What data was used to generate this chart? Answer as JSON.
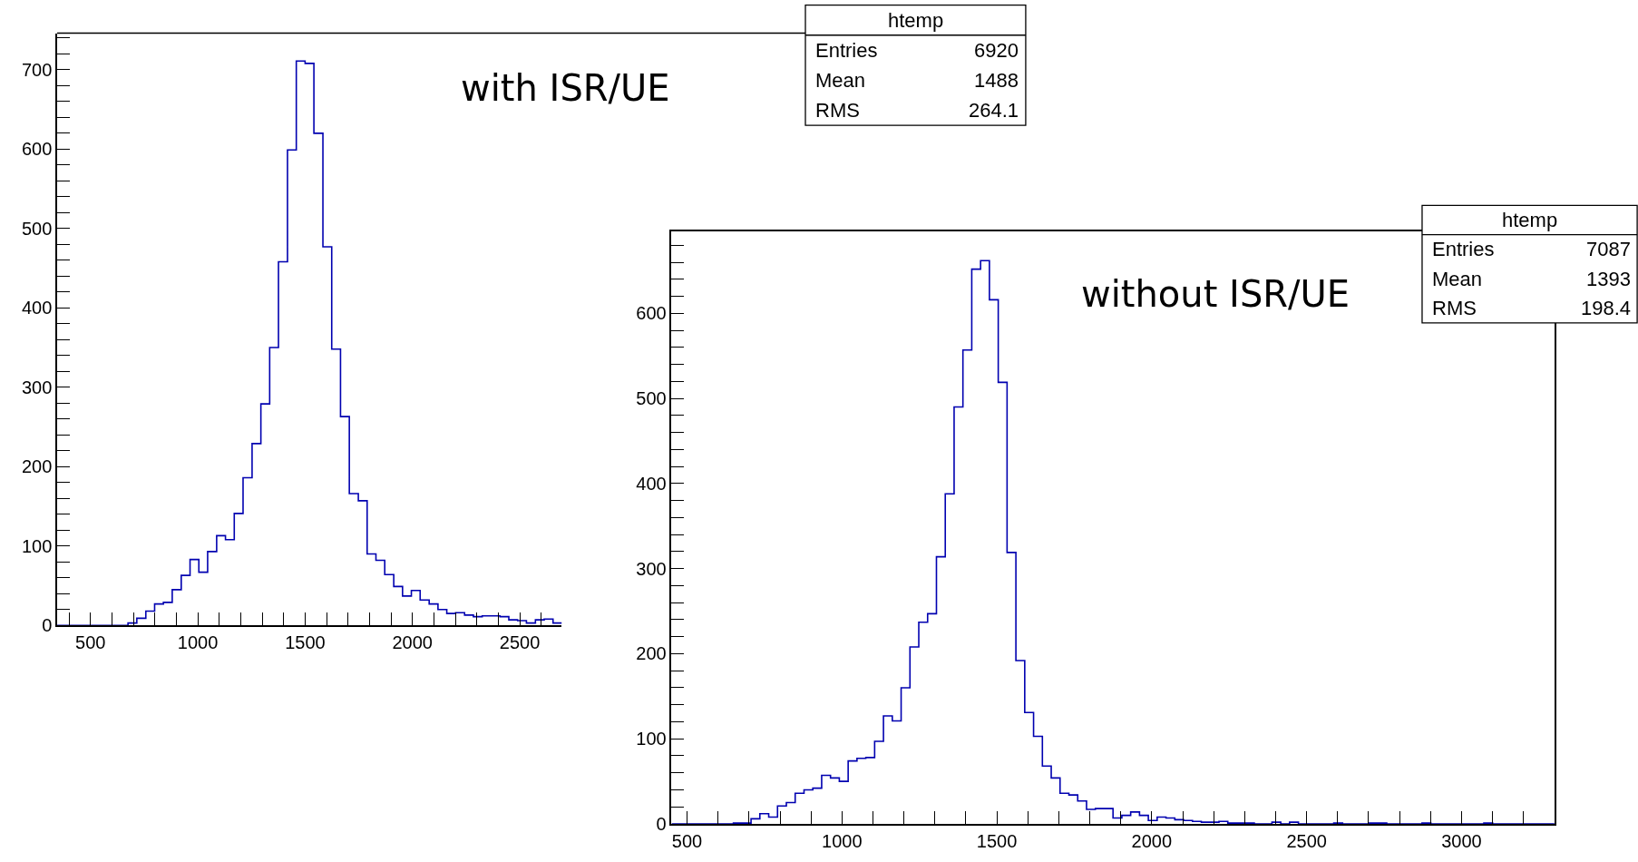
{
  "chart_data": [
    {
      "type": "histogram",
      "color": "#0000b0",
      "bins": [
        345,
        386,
        428,
        469,
        510,
        551,
        593,
        634,
        675,
        716,
        758,
        799,
        840,
        881,
        923,
        964,
        1005,
        1046,
        1088,
        1129,
        1170,
        1211,
        1253,
        1294,
        1335,
        1376,
        1418,
        1459,
        1500,
        1541,
        1583,
        1624,
        1665,
        1706,
        1748,
        1789,
        1830,
        1871,
        1913,
        1954,
        1995,
        2036,
        2078,
        2119,
        2160,
        2201,
        2243,
        2284,
        2325,
        2366,
        2408,
        2449,
        2490,
        2531,
        2573,
        2614,
        2655,
        2696
      ],
      "values": [
        0,
        0,
        0,
        0,
        0,
        0,
        0,
        0,
        3,
        9,
        18,
        27,
        29,
        45,
        63,
        83,
        67,
        93,
        113,
        108,
        141,
        186,
        229,
        279,
        350,
        458,
        599,
        711,
        708,
        620,
        477,
        348,
        263,
        166,
        157,
        90,
        82,
        64,
        49,
        37,
        44,
        32,
        27,
        20,
        15,
        16,
        13,
        11,
        12,
        12,
        11,
        7,
        6,
        3,
        7,
        8,
        3
      ],
      "xlim": [
        345,
        2696
      ],
      "ylim": [
        0,
        746
      ],
      "xticks": [
        {
          "value": 400,
          "label": null
        },
        500,
        {
          "value": 600,
          "label": null
        },
        {
          "value": 700,
          "label": null
        },
        {
          "value": 800,
          "label": null
        },
        {
          "value": 900,
          "label": null
        },
        1000,
        {
          "value": 1100,
          "label": null
        },
        {
          "value": 1200,
          "label": null
        },
        {
          "value": 1300,
          "label": null
        },
        {
          "value": 1400,
          "label": null
        },
        1500,
        {
          "value": 1600,
          "label": null
        },
        {
          "value": 1700,
          "label": null
        },
        {
          "value": 1800,
          "label": null
        },
        {
          "value": 1900,
          "label": null
        },
        2000,
        {
          "value": 2100,
          "label": null
        },
        {
          "value": 2200,
          "label": null
        },
        {
          "value": 2300,
          "label": null
        },
        {
          "value": 2400,
          "label": null
        },
        2500,
        {
          "value": 2600,
          "label": null
        }
      ],
      "yticks": [
        0,
        {
          "value": 20,
          "label": null
        },
        {
          "value": 40,
          "label": null
        },
        {
          "value": 60,
          "label": null
        },
        {
          "value": 80,
          "label": null
        },
        100,
        {
          "value": 120,
          "label": null
        },
        {
          "value": 140,
          "label": null
        },
        {
          "value": 160,
          "label": null
        },
        {
          "value": 180,
          "label": null
        },
        200,
        {
          "value": 220,
          "label": null
        },
        {
          "value": 240,
          "label": null
        },
        {
          "value": 260,
          "label": null
        },
        {
          "value": 280,
          "label": null
        },
        300,
        {
          "value": 320,
          "label": null
        },
        {
          "value": 340,
          "label": null
        },
        {
          "value": 360,
          "label": null
        },
        {
          "value": 380,
          "label": null
        },
        400,
        {
          "value": 420,
          "label": null
        },
        {
          "value": 440,
          "label": null
        },
        {
          "value": 460,
          "label": null
        },
        {
          "value": 480,
          "label": null
        },
        500,
        {
          "value": 520,
          "label": null
        },
        {
          "value": 540,
          "label": null
        },
        {
          "value": 560,
          "label": null
        },
        {
          "value": 580,
          "label": null
        },
        600,
        {
          "value": 620,
          "label": null
        },
        {
          "value": 640,
          "label": null
        },
        {
          "value": 660,
          "label": null
        },
        {
          "value": 680,
          "label": null
        },
        700,
        {
          "value": 720,
          "label": null
        },
        {
          "value": 740,
          "label": null
        }
      ],
      "annotations": [
        "with ISR/UE",
        "htemp",
        "Entries",
        "6920",
        "Mean",
        "1488",
        "RMS",
        "264.1"
      ]
    },
    {
      "type": "histogram",
      "color": "#0000b0",
      "bins": [
        450,
        478.5,
        507,
        535.5,
        564,
        592.5,
        621,
        649.5,
        678,
        706.5,
        735,
        763.5,
        792,
        820.5,
        849,
        877.5,
        906,
        934.5,
        963,
        991.5,
        1020,
        1048.5,
        1077,
        1105.5,
        1134,
        1162.5,
        1191,
        1219.5,
        1248,
        1276.5,
        1305,
        1333.5,
        1362,
        1390.5,
        1419,
        1447.5,
        1476,
        1504.5,
        1533,
        1561.5,
        1590,
        1618.5,
        1647,
        1675.5,
        1704,
        1732.5,
        1761,
        1789.5,
        1818,
        1846.5,
        1875,
        1903.5,
        1932,
        1960.5,
        1989,
        2017.5,
        2046,
        2074.5,
        2103,
        2131.5,
        2160,
        2188.5,
        2217,
        2245.5,
        2274,
        2302.5,
        2331,
        2359.5,
        2388,
        2416.5,
        2445,
        2473.5,
        2502,
        2530.5,
        2559,
        2587.5,
        2616,
        2644.5,
        2673,
        2701.5,
        2730,
        2758.5,
        2787,
        2815.5,
        2844,
        2872.5,
        2901,
        2929.5,
        2958,
        2986.5,
        3015,
        3043.5,
        3072,
        3100.5,
        3129,
        3157.5,
        3186,
        3214.5,
        3243,
        3271.5,
        3300
      ],
      "values": [
        0,
        0,
        0,
        0,
        0,
        0,
        0,
        1,
        1,
        6,
        12,
        8,
        21,
        25,
        36,
        40,
        42,
        57,
        54,
        50,
        74,
        77,
        78,
        97,
        127,
        121,
        160,
        208,
        237,
        247,
        314,
        388,
        490,
        557,
        652,
        662,
        616,
        519,
        319,
        192,
        131,
        103,
        68,
        54,
        36,
        34,
        27,
        17,
        18,
        18,
        7,
        10,
        14,
        10,
        4,
        8,
        7,
        5,
        4,
        3,
        2,
        2,
        3,
        1,
        1,
        1,
        0,
        0,
        2,
        0,
        2,
        0,
        0,
        0,
        0,
        1,
        0,
        0,
        0,
        1,
        1,
        0,
        0,
        0,
        0,
        1,
        0,
        0,
        0,
        0,
        0,
        0,
        1,
        0,
        0,
        0,
        0,
        0,
        0,
        0
      ],
      "xlim": [
        450,
        3300
      ],
      "ylim": [
        0,
        696
      ],
      "xticks": [
        500,
        {
          "value": 600,
          "label": null
        },
        {
          "value": 700,
          "label": null
        },
        {
          "value": 800,
          "label": null
        },
        {
          "value": 900,
          "label": null
        },
        1000,
        {
          "value": 1100,
          "label": null
        },
        {
          "value": 1200,
          "label": null
        },
        {
          "value": 1300,
          "label": null
        },
        {
          "value": 1400,
          "label": null
        },
        1500,
        {
          "value": 1600,
          "label": null
        },
        {
          "value": 1700,
          "label": null
        },
        {
          "value": 1800,
          "label": null
        },
        {
          "value": 1900,
          "label": null
        },
        2000,
        {
          "value": 2100,
          "label": null
        },
        {
          "value": 2200,
          "label": null
        },
        {
          "value": 2300,
          "label": null
        },
        {
          "value": 2400,
          "label": null
        },
        2500,
        {
          "value": 2600,
          "label": null
        },
        {
          "value": 2700,
          "label": null
        },
        {
          "value": 2800,
          "label": null
        },
        {
          "value": 2900,
          "label": null
        },
        3000,
        {
          "value": 3100,
          "label": null
        },
        {
          "value": 3200,
          "label": null
        }
      ],
      "yticks": [
        0,
        {
          "value": 20,
          "label": null
        },
        {
          "value": 40,
          "label": null
        },
        {
          "value": 60,
          "label": null
        },
        {
          "value": 80,
          "label": null
        },
        100,
        {
          "value": 120,
          "label": null
        },
        {
          "value": 140,
          "label": null
        },
        {
          "value": 160,
          "label": null
        },
        {
          "value": 180,
          "label": null
        },
        200,
        {
          "value": 220,
          "label": null
        },
        {
          "value": 240,
          "label": null
        },
        {
          "value": 260,
          "label": null
        },
        {
          "value": 280,
          "label": null
        },
        300,
        {
          "value": 320,
          "label": null
        },
        {
          "value": 340,
          "label": null
        },
        {
          "value": 360,
          "label": null
        },
        {
          "value": 380,
          "label": null
        },
        400,
        {
          "value": 420,
          "label": null
        },
        {
          "value": 440,
          "label": null
        },
        {
          "value": 460,
          "label": null
        },
        {
          "value": 480,
          "label": null
        },
        500,
        {
          "value": 520,
          "label": null
        },
        {
          "value": 540,
          "label": null
        },
        {
          "value": 560,
          "label": null
        },
        {
          "value": 580,
          "label": null
        },
        600,
        {
          "value": 620,
          "label": null
        },
        {
          "value": 640,
          "label": null
        },
        {
          "value": 660,
          "label": null
        },
        {
          "value": 680,
          "label": null
        }
      ],
      "annotations": [
        "without ISR/UE",
        "htemp",
        "Entries",
        "7087",
        "Mean",
        "1393",
        "RMS",
        "198.4"
      ]
    }
  ]
}
